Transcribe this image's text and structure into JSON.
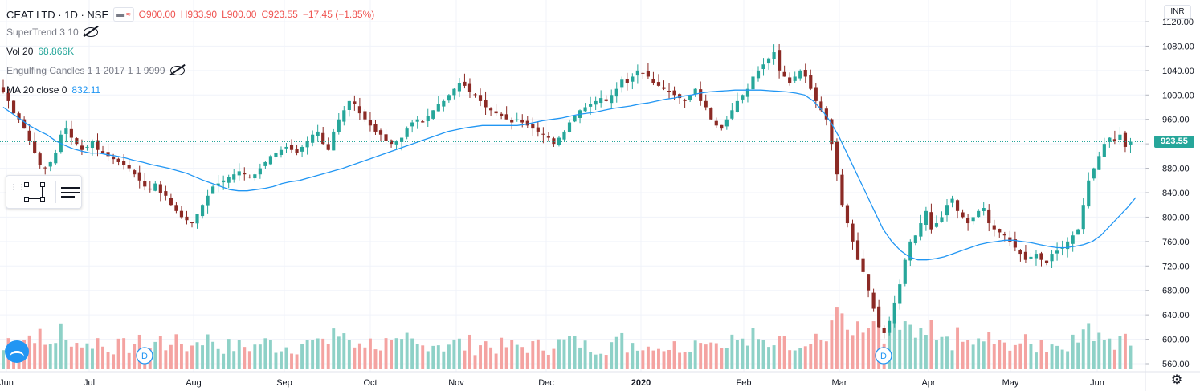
{
  "header": {
    "symbol": "CEAT LTD · 1D · NSE",
    "open": "O900.00",
    "high": "H933.90",
    "low": "L900.00",
    "close": "C923.55",
    "change": "−17.45 (−1.85%)"
  },
  "indicators": {
    "supertrend": "SuperTrend 3 10",
    "volume_label": "Vol 20",
    "volume_value": "68.866K",
    "engulfing": "Engulfing Candles 1 1 2017 1 1 9999",
    "ma_label": "MA 20 close 0",
    "ma_value": "832.11"
  },
  "currency": "INR",
  "last_price_label": "923.55",
  "colors": {
    "up": "#26a69a",
    "down": "#8b2a25",
    "ma": "#2196f3",
    "vol_up": "#8ed1c7",
    "vol_down": "#f4a3a1"
  },
  "icons": [
    "eye-off-icon",
    "rectangle-icon",
    "lines-icon",
    "drag-handle-icon",
    "gear-icon",
    "tradingview-logo"
  ],
  "chart_data": {
    "type": "candlestick",
    "y_axis_ticks": [
      "1120.00",
      "1080.00",
      "1040.00",
      "1000.00",
      "960.00",
      "920.00",
      "880.00",
      "840.00",
      "800.00",
      "760.00",
      "720.00",
      "680.00",
      "640.00",
      "600.00",
      "560.00"
    ],
    "ylim": [
      550,
      1130
    ],
    "x_axis_ticks": [
      "Jun",
      "Jul",
      "Aug",
      "Sep",
      "Oct",
      "Nov",
      "Dec",
      "2020",
      "Feb",
      "Mar",
      "Apr",
      "May",
      "Jun"
    ],
    "last_price": 923.55,
    "dividend_markers": [
      "D",
      "D"
    ],
    "price_path": [
      1005,
      990,
      970,
      960,
      945,
      925,
      905,
      885,
      880,
      890,
      905,
      935,
      945,
      930,
      920,
      910,
      915,
      925,
      910,
      905,
      900,
      895,
      890,
      885,
      880,
      870,
      860,
      850,
      845,
      855,
      840,
      835,
      820,
      810,
      800,
      795,
      790,
      805,
      820,
      835,
      850,
      855,
      860,
      865,
      870,
      875,
      870,
      865,
      870,
      880,
      890,
      900,
      905,
      910,
      915,
      910,
      905,
      915,
      925,
      935,
      940,
      920,
      910,
      940,
      960,
      975,
      990,
      985,
      970,
      960,
      950,
      940,
      935,
      925,
      920,
      925,
      930,
      945,
      955,
      960,
      955,
      965,
      975,
      985,
      990,
      1000,
      1010,
      1020,
      1015,
      1005,
      1000,
      990,
      980,
      975,
      970,
      965,
      960,
      955,
      960,
      955,
      950,
      945,
      940,
      935,
      930,
      920,
      930,
      940,
      955,
      965,
      975,
      980,
      985,
      990,
      995,
      990,
      1000,
      1010,
      1025,
      1020,
      1030,
      1040,
      1035,
      1030,
      1020,
      1015,
      1010,
      1005,
      1000,
      995,
      990,
      1000,
      1010,
      990,
      980,
      960,
      950,
      945,
      960,
      975,
      990,
      1000,
      1010,
      1030,
      1040,
      1050,
      1060,
      1070,
      1040,
      1030,
      1020,
      1030,
      1040,
      1030,
      1010,
      990,
      975,
      960,
      920,
      870,
      820,
      790,
      760,
      730,
      710,
      680,
      650,
      620,
      610,
      630,
      660,
      690,
      730,
      760,
      770,
      790,
      810,
      780,
      790,
      800,
      820,
      830,
      810,
      800,
      790,
      800,
      810,
      815,
      790,
      780,
      775,
      770,
      760,
      750,
      740,
      730,
      735,
      740,
      730,
      725,
      740,
      745,
      750,
      760,
      770,
      780,
      820,
      860,
      880,
      900,
      920,
      930,
      925,
      935,
      915,
      923.55
    ],
    "ma_path": [
      980,
      970,
      960,
      950,
      942,
      935,
      925,
      918,
      912,
      908,
      905,
      905,
      902,
      900,
      897,
      893,
      890,
      886,
      883,
      880,
      876,
      872,
      866,
      860,
      855,
      850,
      845,
      843,
      843,
      845,
      847,
      850,
      855,
      858,
      860,
      864,
      868,
      872,
      876,
      880,
      885,
      890,
      895,
      900,
      905,
      910,
      915,
      920,
      925,
      930,
      935,
      940,
      943,
      946,
      948,
      950,
      950,
      950,
      950,
      950,
      952,
      955,
      958,
      960,
      962,
      965,
      968,
      970,
      972,
      975,
      978,
      980,
      982,
      985,
      987,
      990,
      993,
      995,
      998,
      1000,
      1003,
      1005,
      1006,
      1007,
      1008,
      1008,
      1008,
      1008,
      1007,
      1006,
      1005,
      1003,
      1000,
      990,
      975,
      955,
      930,
      900,
      870,
      840,
      810,
      780,
      760,
      745,
      735,
      730,
      730,
      732,
      735,
      740,
      745,
      750,
      755,
      758,
      760,
      762,
      762,
      760,
      758,
      755,
      752,
      750,
      750,
      752,
      755,
      760,
      770,
      785,
      800,
      815,
      832.11
    ],
    "volume_label": "Vol 20"
  }
}
